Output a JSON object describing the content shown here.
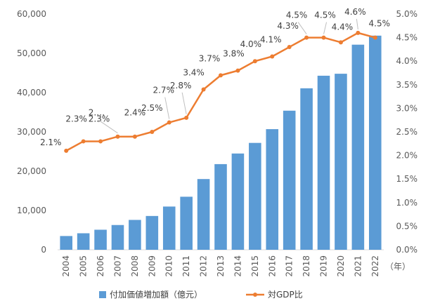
{
  "chart_data": {
    "type": "bar",
    "categories": [
      "2004",
      "2005",
      "2006",
      "2007",
      "2008",
      "2009",
      "2010",
      "2011",
      "2012",
      "2013",
      "2014",
      "2015",
      "2016",
      "2017",
      "2018",
      "2019",
      "2020",
      "2021",
      "2022"
    ],
    "x_unit": "（年）",
    "series": [
      {
        "name": "付加価値増加額（億元）",
        "type": "bar",
        "axis": "left",
        "color": "#5B9BD5",
        "values": [
          3500,
          4200,
          5100,
          6300,
          7600,
          8600,
          11000,
          13500,
          18000,
          21800,
          24500,
          27200,
          30700,
          35400,
          41100,
          44300,
          44800,
          52200,
          54500
        ]
      },
      {
        "name": "対GDP比",
        "type": "line",
        "axis": "right",
        "color": "#ED7D31",
        "values": [
          2.1,
          2.3,
          2.3,
          2.4,
          2.4,
          2.5,
          2.7,
          2.8,
          3.4,
          3.7,
          3.8,
          4.0,
          4.1,
          4.3,
          4.5,
          4.5,
          4.4,
          4.6,
          4.5
        ],
        "labels": [
          "2.1%",
          "2.3%",
          "2.3%",
          "2.…",
          "2.4%",
          "2.5%",
          "2.7%",
          "2.8%",
          "3.4%",
          "3.7%",
          "3.8%",
          "4.0%",
          "4.1%",
          "4.3%",
          "4.5%",
          "4.5%",
          "4.4%",
          "4.6%",
          "4.5%"
        ]
      }
    ],
    "left_axis": {
      "ylim": [
        0,
        60000
      ],
      "ticks": [
        0,
        10000,
        20000,
        30000,
        40000,
        50000,
        60000
      ],
      "tick_labels": [
        "0",
        "10,000",
        "20,000",
        "30,000",
        "40,000",
        "50,000",
        "60,000"
      ]
    },
    "right_axis": {
      "ylim": [
        0,
        5.0
      ],
      "ticks": [
        0,
        0.5,
        1.0,
        1.5,
        2.0,
        2.5,
        3.0,
        3.5,
        4.0,
        4.5,
        5.0
      ],
      "tick_labels": [
        "0.0%",
        "0.5%",
        "1.0%",
        "1.5%",
        "2.0%",
        "2.5%",
        "3.0%",
        "3.5%",
        "4.0%",
        "4.5%",
        "5.0%"
      ]
    },
    "grid": false,
    "legend": {
      "placement": "bottom",
      "entries": [
        "付加価値増加額（億元）",
        "対GDP比"
      ]
    }
  }
}
